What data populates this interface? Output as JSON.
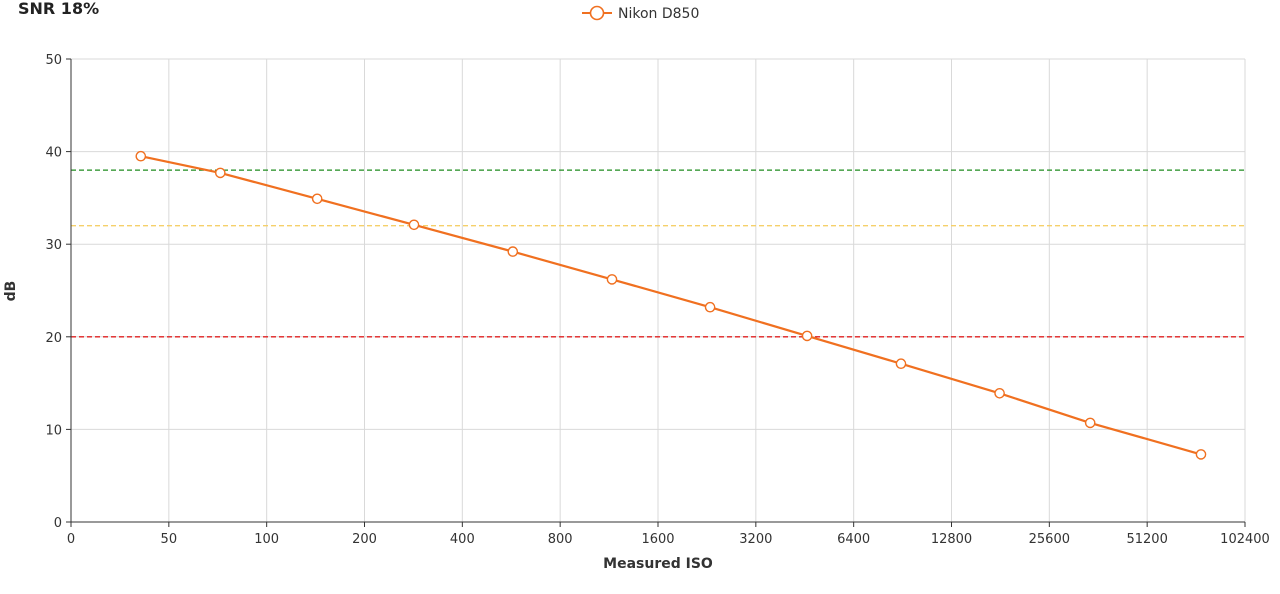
{
  "chart_data": {
    "type": "line",
    "title": "SNR 18%",
    "xlabel": "Measured ISO",
    "ylabel": "dB",
    "x_scale": "log2",
    "x_ticks": [
      "0",
      "50",
      "100",
      "200",
      "400",
      "800",
      "1600",
      "3200",
      "6400",
      "12800",
      "25600",
      "51200",
      "102400"
    ],
    "ylim": [
      0,
      50
    ],
    "y_ticks": [
      0,
      10,
      20,
      30,
      40,
      50
    ],
    "grid": true,
    "legend": "top-center",
    "series": [
      {
        "name": "Nikon D850",
        "color": "#f07020",
        "marker": "circle-open",
        "points": [
          {
            "x": 41,
            "y": 39.5
          },
          {
            "x": 72,
            "y": 37.7
          },
          {
            "x": 143,
            "y": 34.9
          },
          {
            "x": 284,
            "y": 32.1
          },
          {
            "x": 572,
            "y": 29.2
          },
          {
            "x": 1155,
            "y": 26.2
          },
          {
            "x": 2315,
            "y": 23.2
          },
          {
            "x": 4600,
            "y": 20.1
          },
          {
            "x": 8950,
            "y": 17.1
          },
          {
            "x": 18000,
            "y": 13.9
          },
          {
            "x": 34200,
            "y": 10.7
          },
          {
            "x": 75000,
            "y": 7.3
          }
        ]
      }
    ],
    "reference_lines": [
      {
        "y": 38,
        "color": "#1e8c1e"
      },
      {
        "y": 32,
        "color": "#f5d06a"
      },
      {
        "y": 20,
        "color": "#e02020"
      }
    ]
  }
}
